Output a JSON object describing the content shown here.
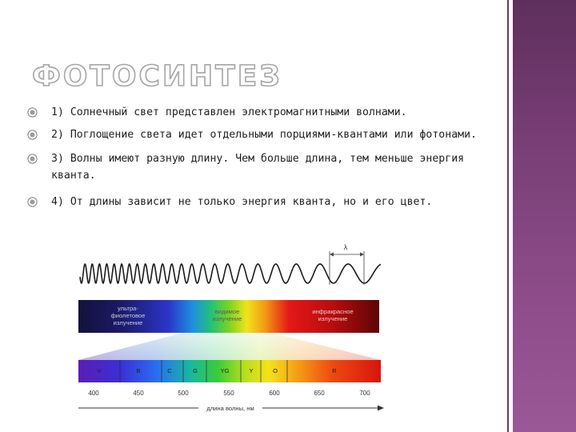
{
  "title": "ФОТОСИНТЕЗ",
  "bullets": [
    "1) Солнечный свет представлен электромагнитными волнами.",
    "2) Поглощение света идет отдельными порциями-квантами или фотонами.",
    "3) Волны имеют разную длину. Чем больше длина, тем меньше энергия кванта.",
    "4) От длины зависит не только энергия кванта, но и его цвет."
  ],
  "figure": {
    "lambda_label": "λ",
    "band_labels": {
      "uv": [
        "ультра-",
        "фиолетовое",
        "излучение"
      ],
      "visible": [
        "видимое",
        "излучение"
      ],
      "ir": [
        "инфракрасное",
        "излучение"
      ]
    },
    "color_letters": [
      "V",
      "B",
      "C",
      "G",
      "YG",
      "Y",
      "O",
      "R"
    ],
    "wavelength_ticks": [
      "400",
      "450",
      "500",
      "550",
      "600",
      "650",
      "700"
    ],
    "axis_label": "длина волны, нм"
  },
  "colors": {
    "side_panel": "#7a3f77",
    "title_stroke": "#a6a6a6",
    "bullet_text": "#1f1f1f"
  }
}
